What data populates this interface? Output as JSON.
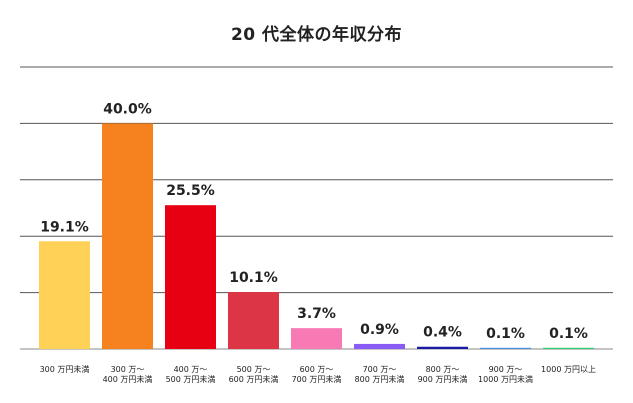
{
  "chart_data": {
    "type": "bar",
    "title": "20 代全体の年収分布",
    "xlabel": "",
    "ylabel": "",
    "ylim": [
      0,
      50
    ],
    "grid": true,
    "categories": [
      [
        "300 万円未満"
      ],
      [
        "300 万～",
        "400 万円未満"
      ],
      [
        "400 万～",
        "500 万円未満"
      ],
      [
        "500 万～",
        "600 万円未満"
      ],
      [
        "600 万～",
        "700 万円未満"
      ],
      [
        "700 万～",
        "800 万円未満"
      ],
      [
        "800 万～",
        "900 万円未満"
      ],
      [
        "900 万～",
        "1000 万円未満"
      ],
      [
        "1000 万円以上"
      ]
    ],
    "values": [
      19.1,
      40.0,
      25.5,
      10.1,
      3.7,
      0.9,
      0.4,
      0.1,
      0.1
    ],
    "data_labels": [
      "19.1%",
      "40.0%",
      "25.5%",
      "10.1%",
      "3.7%",
      "0.9%",
      "0.4%",
      "0.1%",
      "0.1%"
    ],
    "colors": [
      "#FFD257",
      "#F5821F",
      "#E60012",
      "#DC3545",
      "#F77AB4",
      "#8A5CF6",
      "#1A1AA6",
      "#4A8FE6",
      "#2ECC71"
    ]
  }
}
